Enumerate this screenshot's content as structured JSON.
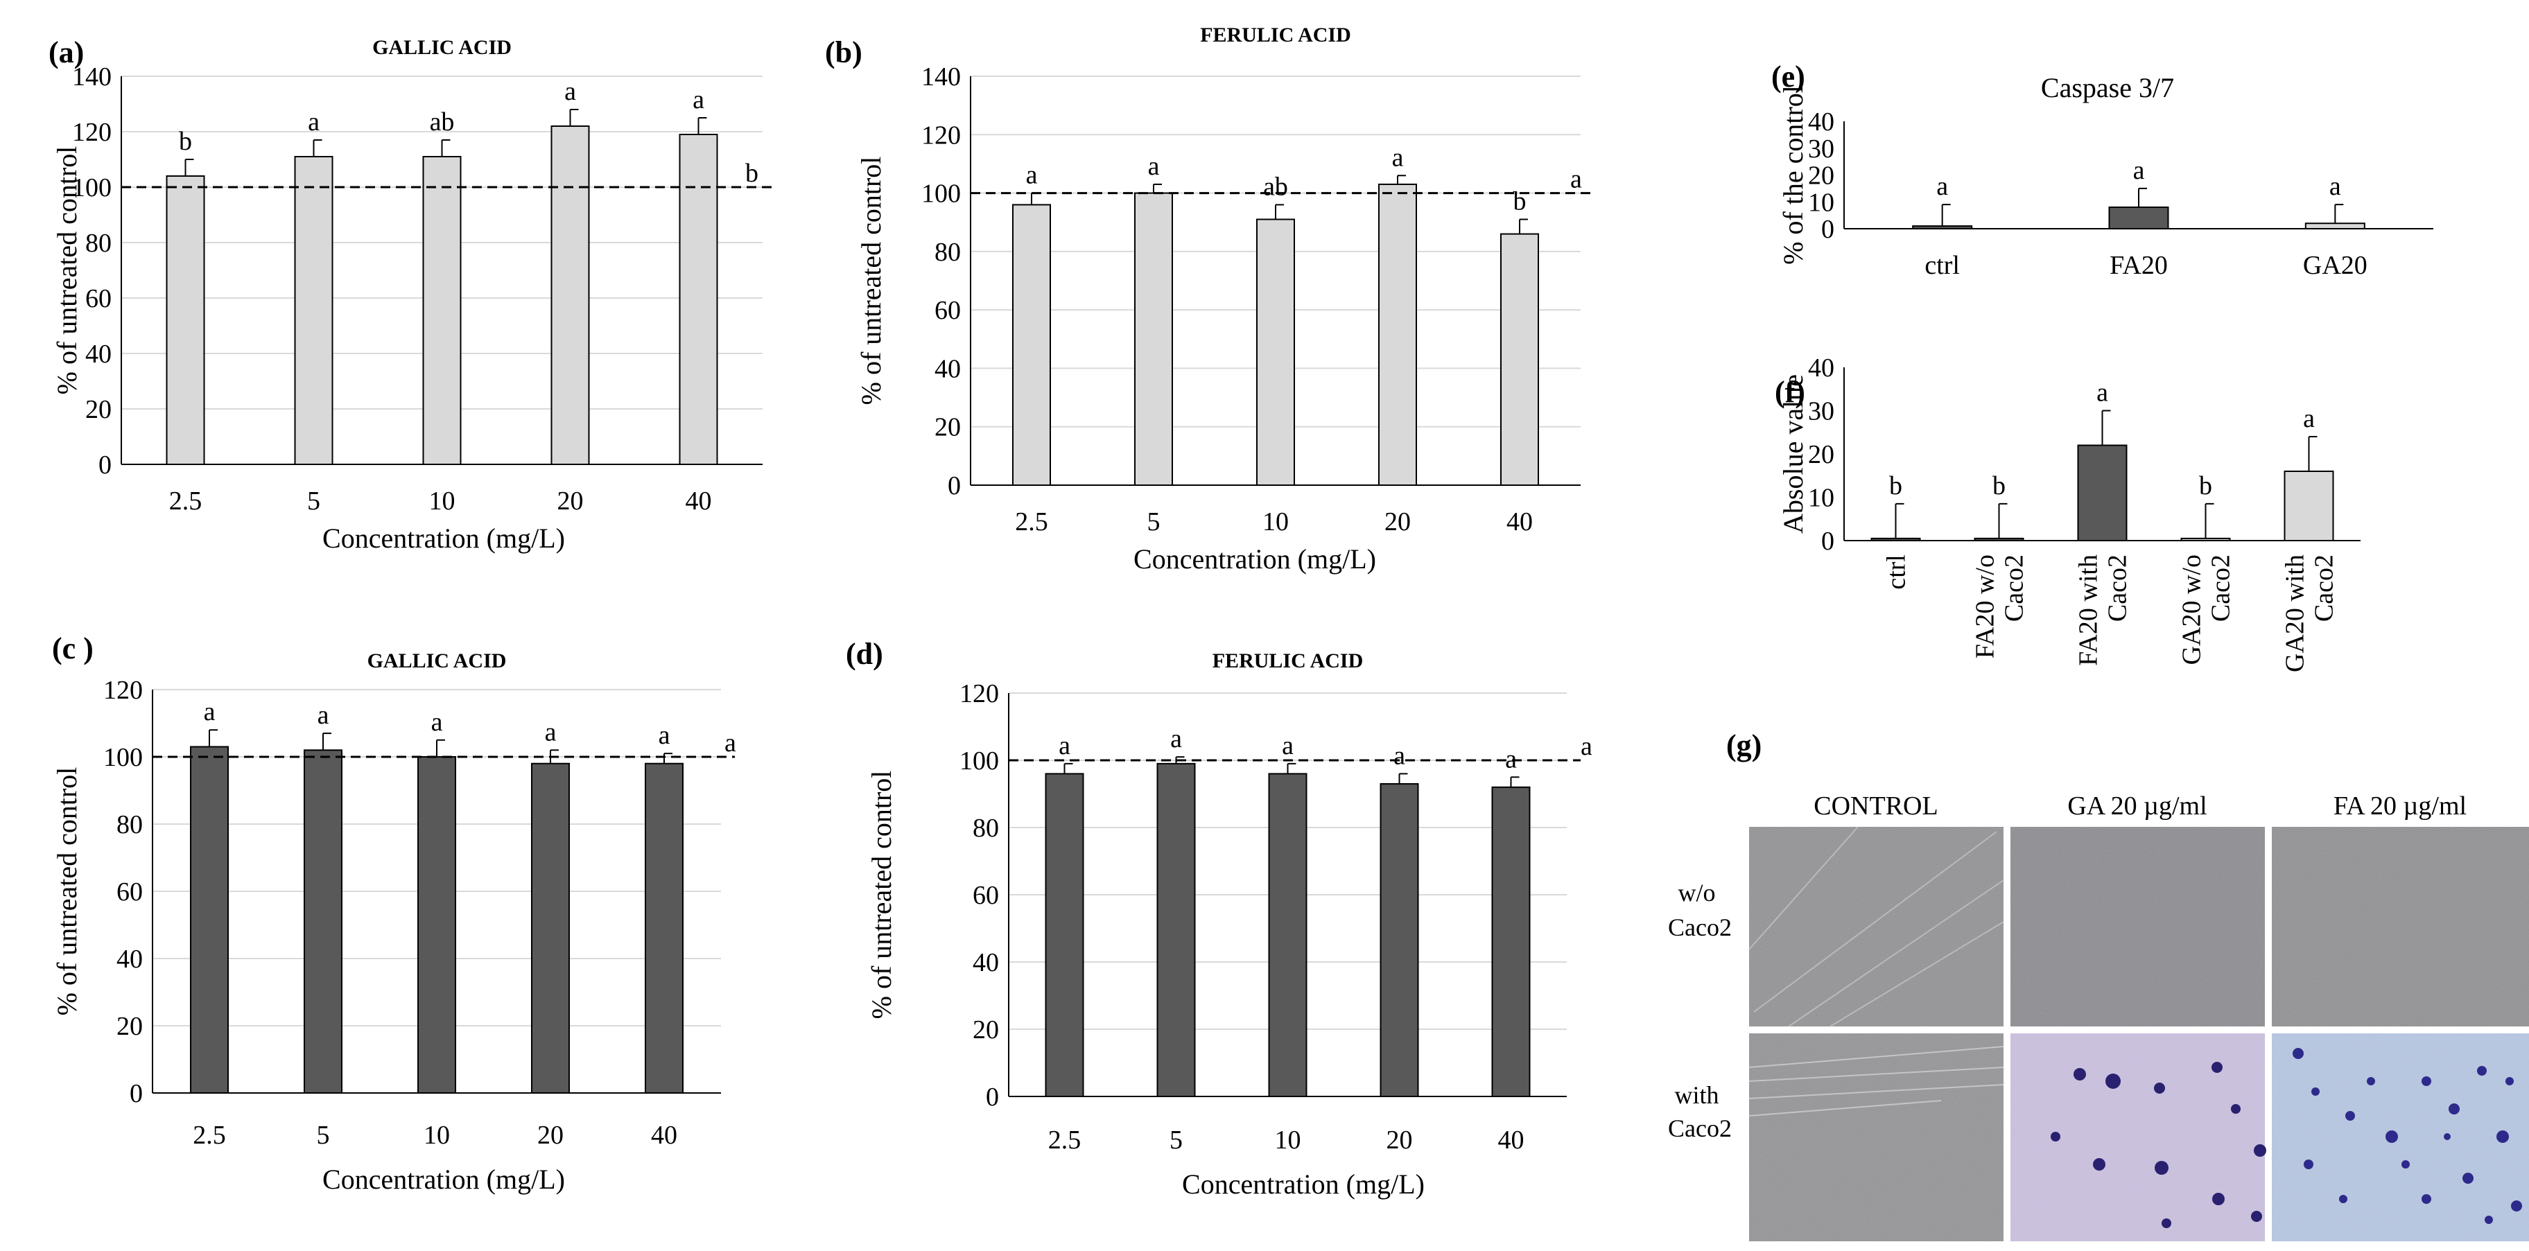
{
  "chart_data": [
    {
      "panel": "(a)",
      "type": "bar",
      "title": "GALLIC ACID",
      "xlabel": "Concentration (mg/L)",
      "ylabel": "% of untreated control",
      "categories": [
        "2.5",
        "5",
        "10",
        "20",
        "40"
      ],
      "values": [
        104,
        111,
        111,
        122,
        119
      ],
      "errors": [
        6,
        6,
        6,
        6,
        6
      ],
      "labels": [
        "b",
        "a",
        "ab",
        "a",
        "a"
      ],
      "reference": {
        "value": 100,
        "label": "b",
        "style": "dashed"
      },
      "ylim": [
        0,
        140
      ],
      "yticks": [
        "0",
        "20",
        "40",
        "60",
        "80",
        "100",
        "120",
        "140"
      ],
      "bar_color": "#d9d9d9",
      "grid": true
    },
    {
      "panel": "(b)",
      "type": "bar",
      "title": "FERULIC ACID",
      "xlabel": "Concentration (mg/L)",
      "ylabel": "% of untreated control",
      "categories": [
        "2.5",
        "5",
        "10",
        "20",
        "40"
      ],
      "values": [
        96,
        100,
        91,
        103,
        86
      ],
      "errors": [
        4,
        3,
        5,
        3,
        5
      ],
      "labels": [
        "a",
        "a",
        "ab",
        "a",
        "b"
      ],
      "reference": {
        "value": 100,
        "label": "a",
        "style": "dashed"
      },
      "ylim": [
        0,
        140
      ],
      "yticks": [
        "0",
        "20",
        "40",
        "60",
        "80",
        "100",
        "120",
        "140"
      ],
      "bar_color": "#d9d9d9",
      "grid": true
    },
    {
      "panel": "(c )",
      "type": "bar",
      "title": "GALLIC ACID",
      "xlabel": "Concentration (mg/L)",
      "ylabel": "% of untreated control",
      "categories": [
        "2.5",
        "5",
        "10",
        "20",
        "40"
      ],
      "values": [
        103,
        102,
        100,
        98,
        98
      ],
      "errors": [
        5,
        5,
        5,
        4,
        3
      ],
      "labels": [
        "a",
        "a",
        "a",
        "a",
        "a"
      ],
      "reference": {
        "value": 100,
        "label": "a",
        "style": "dashed"
      },
      "ylim": [
        0,
        120
      ],
      "yticks": [
        "0",
        "20",
        "40",
        "60",
        "80",
        "100",
        "120"
      ],
      "bar_color": "#595959",
      "grid": true
    },
    {
      "panel": "(d)",
      "type": "bar",
      "title": "FERULIC ACID",
      "xlabel": "Concentration (mg/L)",
      "ylabel": "% of untreated control",
      "categories": [
        "2.5",
        "5",
        "10",
        "20",
        "40"
      ],
      "values": [
        96,
        99,
        96,
        93,
        92
      ],
      "errors": [
        3,
        2,
        3,
        3,
        3
      ],
      "labels": [
        "a",
        "a",
        "a",
        "a",
        "a"
      ],
      "reference": {
        "value": 100,
        "label": "a",
        "style": "dashed"
      },
      "ylim": [
        0,
        120
      ],
      "yticks": [
        "0",
        "20",
        "40",
        "60",
        "80",
        "100",
        "120"
      ],
      "bar_color": "#595959",
      "grid": true
    },
    {
      "panel": "(e)",
      "type": "bar",
      "title": "Caspase 3/7",
      "xlabel": "",
      "ylabel": "% of the control",
      "categories": [
        "ctrl",
        "FA20",
        "GA20"
      ],
      "values": [
        1,
        8,
        2
      ],
      "errors": [
        8,
        7,
        7
      ],
      "labels": [
        "a",
        "a",
        "a"
      ],
      "colors": [
        "#595959",
        "#595959",
        "#d9d9d9"
      ],
      "ylim": [
        0,
        40
      ],
      "yticks": [
        "0",
        "10",
        "20",
        "30",
        "40"
      ],
      "grid": false
    },
    {
      "panel": "(f)",
      "type": "bar",
      "title": "",
      "xlabel": "",
      "ylabel": "Absolue value",
      "categories": [
        "ctrl",
        "FA20 w/o Caco2",
        "FA20 with Caco2",
        "GA20 w/o Caco2",
        "GA20 with Caco2"
      ],
      "category_lines": [
        [
          "ctrl"
        ],
        [
          "FA20 w/o",
          "Caco2"
        ],
        [
          "FA20 with",
          "Caco2"
        ],
        [
          "GA20 w/o",
          "Caco2"
        ],
        [
          "GA20 with",
          "Caco2"
        ]
      ],
      "values": [
        0.5,
        0.5,
        22,
        0.5,
        16
      ],
      "errors": [
        8,
        8,
        8,
        8,
        8
      ],
      "labels": [
        "b",
        "b",
        "a",
        "b",
        "a"
      ],
      "colors": [
        "#595959",
        "#595959",
        "#595959",
        "#d9d9d9",
        "#d9d9d9"
      ],
      "ylim": [
        0,
        40
      ],
      "yticks": [
        "0",
        "10",
        "20",
        "30",
        "40"
      ],
      "grid": false
    }
  ],
  "micrographs": {
    "panel_label": "(g)",
    "columns": [
      "CONTROL",
      "GA 20 µg/ml",
      "FA 20 µg/ml"
    ],
    "rows": [
      {
        "label_lines": [
          "w/o",
          "Caco2"
        ]
      },
      {
        "label_lines": [
          "with",
          "Caco2"
        ]
      }
    ]
  }
}
